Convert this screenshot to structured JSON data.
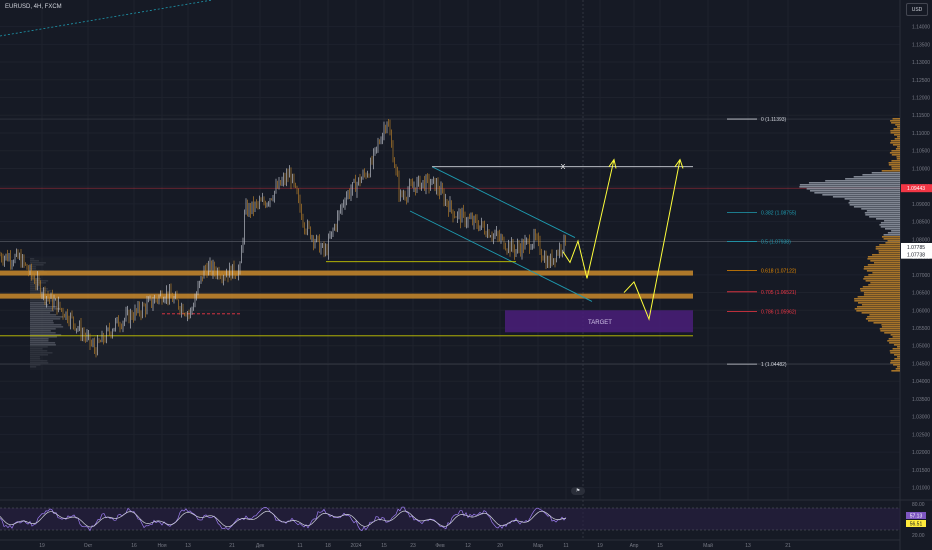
{
  "header": {
    "symbol": "EURUSD, 4H, FXCM"
  },
  "currency_button": "USD",
  "chart_data": [
    {
      "type": "line",
      "series": [],
      "x": [
        "19",
        "Окт",
        "16",
        "Ноя",
        "13",
        "21",
        "Дек",
        "11",
        "18",
        "2024",
        "15",
        "23",
        "Фев",
        "12",
        "20",
        "Мар",
        "11",
        "19",
        "Апр",
        "15",
        "Май",
        "13",
        "21"
      ],
      "y_ticks": [
        "1.14000",
        "1.13500",
        "1.13000",
        "1.12500",
        "1.12000",
        "1.11500",
        "1.11000",
        "1.10500",
        "1.10000",
        "1.09500",
        "1.09000",
        "1.08500",
        "1.08000",
        "1.07500",
        "1.07000",
        "1.06500",
        "1.06000",
        "1.05500",
        "1.05000",
        "1.04500",
        "1.04000",
        "1.03500",
        "1.03000",
        "1.02500",
        "1.02000",
        "1.01500",
        "1.01000"
      ],
      "ylim": [
        1.0065,
        1.1475
      ],
      "price_labels": [
        {
          "text": "1.09443",
          "value": 1.09443,
          "color": "#f23645"
        },
        {
          "text": "1.07785",
          "value": 1.07785,
          "color": "#ffffff"
        },
        {
          "text": "1.07738",
          "value": 1.07738,
          "color": "#ffffff"
        }
      ],
      "fib_levels": [
        {
          "label": "0 (1.11393)",
          "value": 1.11393,
          "color": "#d1d4dc"
        },
        {
          "label": "0.382 (1.08755)",
          "value": 1.08755,
          "color": "#1e9bb0"
        },
        {
          "label": "0.5 (1.07938)",
          "value": 1.07938,
          "color": "#1e9bb0"
        },
        {
          "label": "0.618 (1.07122)",
          "value": 1.07122,
          "color": "#e68a00"
        },
        {
          "label": "0.705 (1.06521)",
          "value": 1.06521,
          "color": "#f23645"
        },
        {
          "label": "0.786 (1.05962)",
          "value": 1.05962,
          "color": "#f23645"
        },
        {
          "label": "1 (1.04482)",
          "value": 1.04482,
          "color": "#d1d4dc"
        }
      ],
      "annotations": {
        "x_marker": "X",
        "target": "TARGET"
      }
    },
    {
      "type": "line",
      "series": [],
      "y_ticks": [
        "80.00",
        "20.00"
      ],
      "ylim": [
        0,
        100
      ],
      "value_labels": [
        {
          "text": "57.13",
          "color": "#7e57c2"
        },
        {
          "text": "56.51",
          "color": "#ffeb3b"
        }
      ]
    }
  ],
  "colors": {
    "bg": "#161a25",
    "up": "#d1d4dc",
    "down": "#c98a2b",
    "accent": "#e6e600"
  }
}
